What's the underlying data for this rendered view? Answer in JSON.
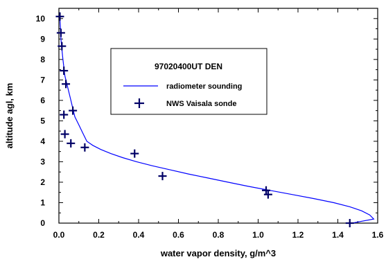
{
  "chart_data": {
    "type": "line",
    "title": "",
    "xlabel": "water vapor density, g/m^3",
    "ylabel": "altitude agl, km",
    "xlim": [
      0.0,
      1.6
    ],
    "ylim": [
      0,
      10.5
    ],
    "x_ticks": [
      "0.0",
      "0.2",
      "0.4",
      "0.6",
      "0.8",
      "1.0",
      "1.2",
      "1.4",
      "1.6"
    ],
    "y_ticks": [
      "0",
      "1",
      "2",
      "3",
      "4",
      "5",
      "6",
      "7",
      "8",
      "9",
      "10"
    ],
    "grid": false,
    "legend": {
      "placement": "inside upper-middle",
      "title": "97020400UT DEN",
      "entries": [
        "radiometer sounding",
        "NWS Vaisala sonde"
      ]
    },
    "series": [
      {
        "name": "radiometer sounding",
        "style": "line",
        "color": "#0000ff",
        "x": [
          1.47,
          1.58,
          1.56,
          1.52,
          1.46,
          1.38,
          1.28,
          1.17,
          1.06,
          0.95,
          0.85,
          0.75,
          0.65,
          0.56,
          0.47,
          0.39,
          0.32,
          0.26,
          0.21,
          0.17,
          0.14,
          0.12,
          0.1,
          0.08,
          0.07,
          0.06,
          0.05,
          0.04,
          0.03,
          0.025,
          0.02,
          0.015,
          0.01,
          0.008,
          0.005
        ],
        "y": [
          0.0,
          0.2,
          0.4,
          0.6,
          0.8,
          1.0,
          1.2,
          1.4,
          1.6,
          1.8,
          2.0,
          2.2,
          2.4,
          2.6,
          2.8,
          3.0,
          3.2,
          3.4,
          3.6,
          3.8,
          4.0,
          4.4,
          4.8,
          5.2,
          5.6,
          6.0,
          6.4,
          6.8,
          7.2,
          7.6,
          8.0,
          8.5,
          9.0,
          9.5,
          10.0
        ]
      },
      {
        "name": "NWS Vaisala sonde",
        "style": "marker-plus",
        "color": "#000066",
        "x": [
          1.46,
          1.05,
          1.04,
          0.52,
          0.38,
          0.13,
          0.06,
          0.03,
          0.025,
          0.07,
          0.035,
          0.025,
          0.015,
          0.01,
          0.005
        ],
        "y": [
          0.0,
          1.4,
          1.6,
          2.3,
          3.4,
          3.7,
          3.9,
          4.35,
          5.3,
          5.5,
          6.8,
          7.45,
          8.65,
          9.3,
          10.1
        ]
      }
    ]
  }
}
